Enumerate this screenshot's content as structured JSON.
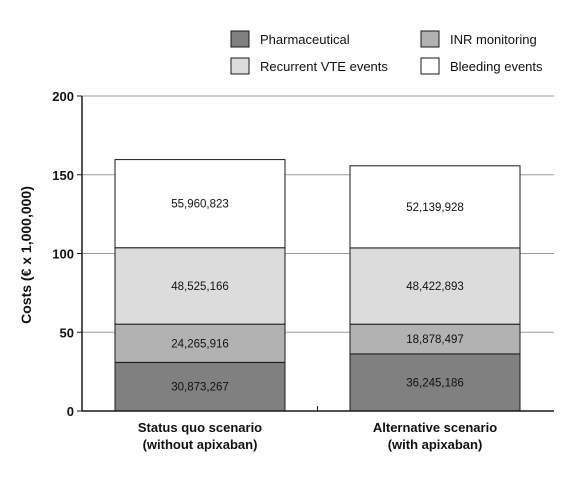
{
  "chart_data": {
    "type": "bar",
    "stacked": true,
    "ylabel": "Costs (€ x 1,000,000)",
    "xlabel": "",
    "ylim": [
      0,
      200
    ],
    "yticks": [
      0,
      50,
      100,
      150,
      200
    ],
    "grid": true,
    "legend_placement": "top-right",
    "categories": [
      [
        "Status quo scenario",
        "(without apixaban)"
      ],
      [
        "Alternative scenario",
        "(with apixaban)"
      ]
    ],
    "series": [
      {
        "name": "Pharmaceutical",
        "color": "#808080",
        "values": [
          30.873267,
          36.245186
        ],
        "labels": [
          "30,873,267",
          "36,245,186"
        ]
      },
      {
        "name": "INR monitoring",
        "color": "#b2b2b2",
        "values": [
          24.265916,
          18.878497
        ],
        "labels": [
          "24,265,916",
          "18,878,497"
        ]
      },
      {
        "name": "Recurrent VTE events",
        "color": "#dcdcdc",
        "values": [
          48.525166,
          48.422893
        ],
        "labels": [
          "48,525,166",
          "48,422,893"
        ]
      },
      {
        "name": "Bleeding events",
        "color": "#ffffff",
        "values": [
          55.960823,
          52.139928
        ],
        "labels": [
          "55,960,823",
          "52,139,928"
        ]
      }
    ]
  }
}
